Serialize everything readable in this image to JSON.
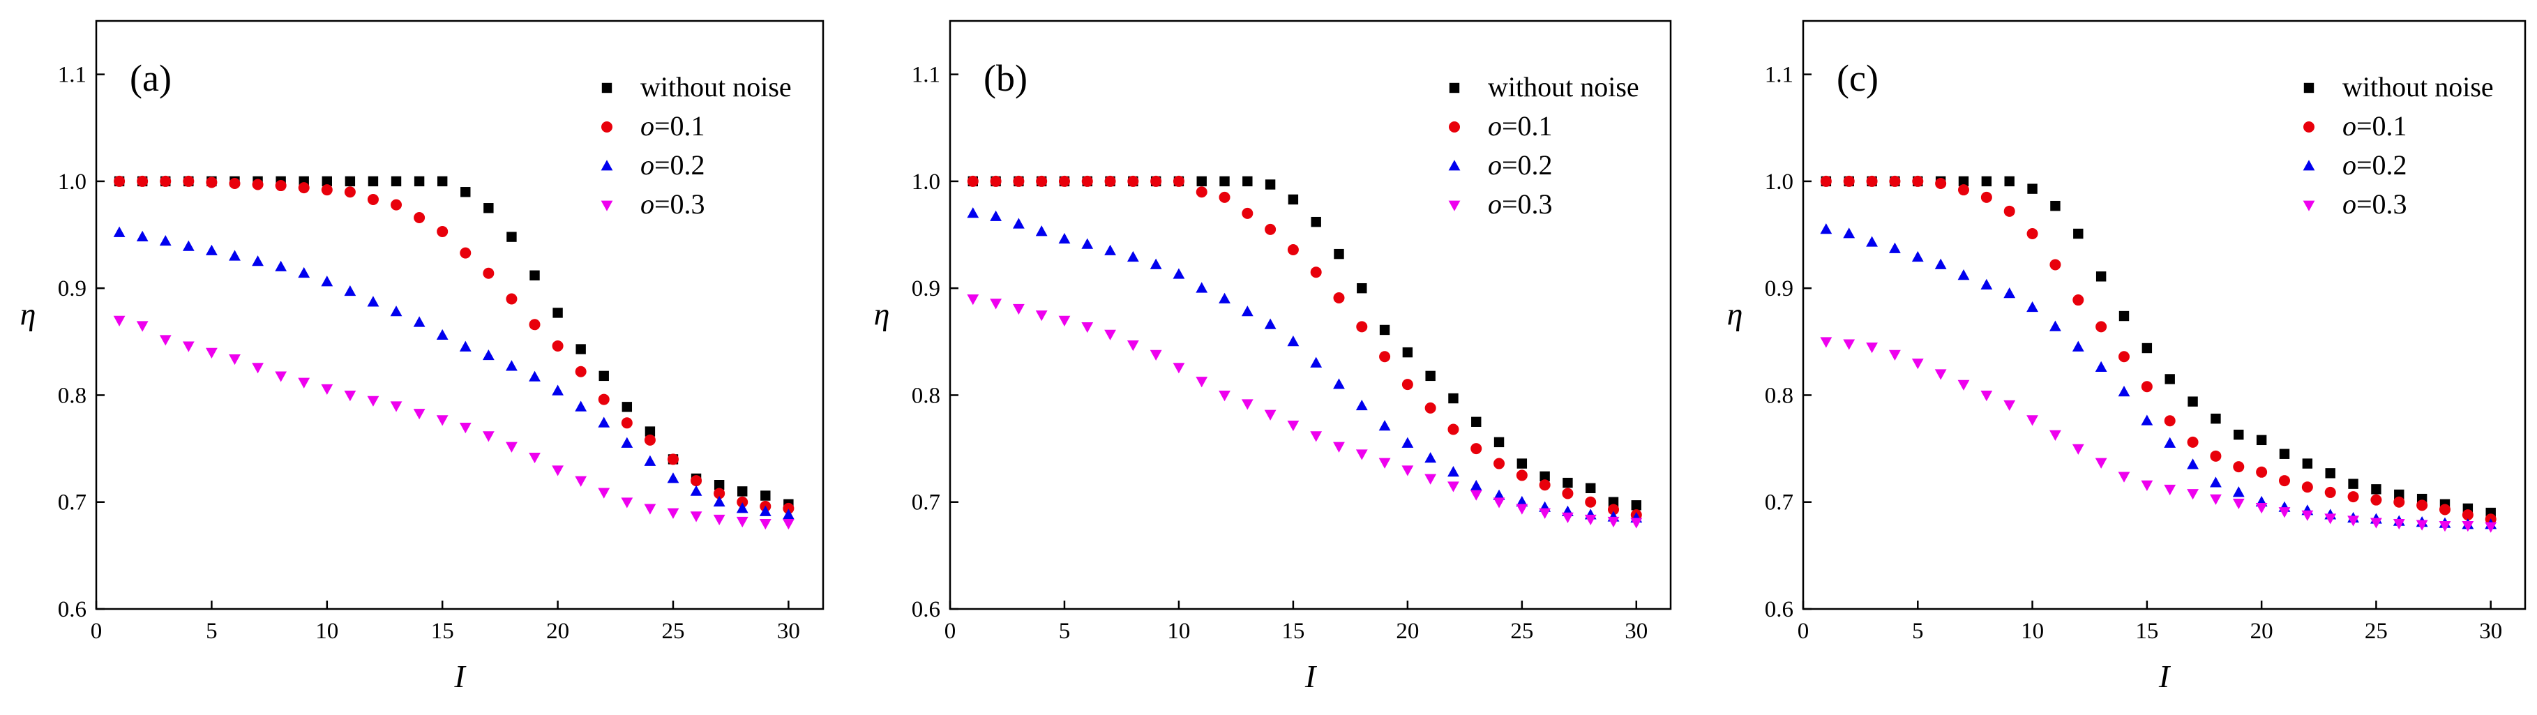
{
  "chart_data": [
    {
      "type": "scatter",
      "panel_label": "(a)",
      "xlabel": "I",
      "ylabel": "η",
      "xlim": [
        0,
        31.5
      ],
      "ylim": [
        0.6,
        1.15
      ],
      "xticks": [
        0,
        5,
        10,
        15,
        20,
        25,
        30
      ],
      "yticks": [
        0.6,
        0.7,
        0.8,
        0.9,
        1.0,
        1.1
      ],
      "legend_position": "top-right",
      "x": [
        1,
        2,
        3,
        4,
        5,
        6,
        7,
        8,
        9,
        10,
        11,
        12,
        13,
        14,
        15,
        16,
        17,
        18,
        19,
        20,
        21,
        22,
        23,
        24,
        25,
        26,
        27,
        28,
        29,
        30
      ],
      "series": [
        {
          "name": "without noise",
          "symbol_label": "",
          "value_label": "without noise",
          "marker": "square",
          "color": "#000000",
          "values": [
            1.0,
            1.0,
            1.0,
            1.0,
            1.0,
            1.0,
            1.0,
            1.0,
            1.0,
            1.0,
            1.0,
            1.0,
            1.0,
            1.0,
            1.0,
            0.99,
            0.975,
            0.948,
            0.912,
            0.877,
            0.843,
            0.818,
            0.789,
            0.766,
            0.74,
            0.722,
            0.716,
            0.71,
            0.706,
            0.698
          ]
        },
        {
          "name": "o=0.1",
          "symbol_label": "o",
          "value_label": "=0.1",
          "marker": "circle",
          "color": "#e8000b",
          "values": [
            1.0,
            1.0,
            1.0,
            1.0,
            0.999,
            0.998,
            0.997,
            0.996,
            0.994,
            0.992,
            0.99,
            0.983,
            0.978,
            0.966,
            0.953,
            0.933,
            0.914,
            0.89,
            0.866,
            0.846,
            0.822,
            0.796,
            0.774,
            0.758,
            0.74,
            0.72,
            0.708,
            0.7,
            0.696,
            0.694
          ]
        },
        {
          "name": "o=0.2",
          "symbol_label": "o",
          "value_label": "=0.2",
          "marker": "triangle-up",
          "color": "#0000ee",
          "values": [
            0.952,
            0.948,
            0.944,
            0.939,
            0.935,
            0.93,
            0.925,
            0.92,
            0.914,
            0.906,
            0.897,
            0.887,
            0.878,
            0.868,
            0.856,
            0.845,
            0.837,
            0.827,
            0.817,
            0.804,
            0.789,
            0.774,
            0.755,
            0.738,
            0.722,
            0.71,
            0.7,
            0.694,
            0.691,
            0.688
          ]
        },
        {
          "name": "o=0.3",
          "symbol_label": "o",
          "value_label": "=0.3",
          "marker": "triangle-down",
          "color": "#ee00ee",
          "values": [
            0.87,
            0.865,
            0.852,
            0.846,
            0.84,
            0.834,
            0.826,
            0.818,
            0.812,
            0.806,
            0.8,
            0.795,
            0.79,
            0.783,
            0.777,
            0.77,
            0.762,
            0.752,
            0.742,
            0.73,
            0.72,
            0.709,
            0.7,
            0.694,
            0.69,
            0.687,
            0.684,
            0.682,
            0.68,
            0.68
          ]
        }
      ]
    },
    {
      "type": "scatter",
      "panel_label": "(b)",
      "xlabel": "I",
      "ylabel": "η",
      "xlim": [
        0,
        31.5
      ],
      "ylim": [
        0.6,
        1.15
      ],
      "xticks": [
        0,
        5,
        10,
        15,
        20,
        25,
        30
      ],
      "yticks": [
        0.6,
        0.7,
        0.8,
        0.9,
        1.0,
        1.1
      ],
      "legend_position": "top-right",
      "x": [
        1,
        2,
        3,
        4,
        5,
        6,
        7,
        8,
        9,
        10,
        11,
        12,
        13,
        14,
        15,
        16,
        17,
        18,
        19,
        20,
        21,
        22,
        23,
        24,
        25,
        26,
        27,
        28,
        29,
        30
      ],
      "series": [
        {
          "name": "without noise",
          "symbol_label": "",
          "value_label": "without noise",
          "marker": "square",
          "color": "#000000",
          "values": [
            1.0,
            1.0,
            1.0,
            1.0,
            1.0,
            1.0,
            1.0,
            1.0,
            1.0,
            1.0,
            1.0,
            1.0,
            1.0,
            0.997,
            0.983,
            0.962,
            0.932,
            0.9,
            0.861,
            0.84,
            0.818,
            0.797,
            0.775,
            0.756,
            0.736,
            0.724,
            0.718,
            0.713,
            0.7,
            0.697
          ]
        },
        {
          "name": "o=0.1",
          "symbol_label": "o",
          "value_label": "=0.1",
          "marker": "circle",
          "color": "#e8000b",
          "values": [
            1.0,
            1.0,
            1.0,
            1.0,
            1.0,
            1.0,
            1.0,
            1.0,
            1.0,
            1.0,
            0.99,
            0.985,
            0.97,
            0.955,
            0.936,
            0.915,
            0.891,
            0.864,
            0.836,
            0.81,
            0.788,
            0.768,
            0.75,
            0.736,
            0.725,
            0.716,
            0.708,
            0.7,
            0.693,
            0.688
          ]
        },
        {
          "name": "o=0.2",
          "symbol_label": "o",
          "value_label": "=0.2",
          "marker": "triangle-up",
          "color": "#0000ee",
          "values": [
            0.97,
            0.967,
            0.96,
            0.953,
            0.946,
            0.941,
            0.935,
            0.929,
            0.922,
            0.913,
            0.9,
            0.89,
            0.878,
            0.866,
            0.85,
            0.83,
            0.81,
            0.79,
            0.771,
            0.755,
            0.741,
            0.728,
            0.715,
            0.706,
            0.7,
            0.695,
            0.691,
            0.688,
            0.686,
            0.685
          ]
        },
        {
          "name": "o=0.3",
          "symbol_label": "o",
          "value_label": "=0.3",
          "marker": "triangle-down",
          "color": "#ee00ee",
          "values": [
            0.89,
            0.886,
            0.881,
            0.875,
            0.87,
            0.864,
            0.857,
            0.847,
            0.838,
            0.826,
            0.813,
            0.8,
            0.792,
            0.782,
            0.772,
            0.762,
            0.752,
            0.745,
            0.737,
            0.73,
            0.722,
            0.715,
            0.707,
            0.7,
            0.694,
            0.69,
            0.686,
            0.684,
            0.682,
            0.681
          ]
        }
      ]
    },
    {
      "type": "scatter",
      "panel_label": "(c)",
      "xlabel": "I",
      "ylabel": "η",
      "xlim": [
        0,
        31.5
      ],
      "ylim": [
        0.6,
        1.15
      ],
      "xticks": [
        0,
        5,
        10,
        15,
        20,
        25,
        30
      ],
      "yticks": [
        0.6,
        0.7,
        0.8,
        0.9,
        1.0,
        1.1
      ],
      "legend_position": "top-right",
      "x": [
        1,
        2,
        3,
        4,
        5,
        6,
        7,
        8,
        9,
        10,
        11,
        12,
        13,
        14,
        15,
        16,
        17,
        18,
        19,
        20,
        21,
        22,
        23,
        24,
        25,
        26,
        27,
        28,
        29,
        30
      ],
      "series": [
        {
          "name": "without noise",
          "symbol_label": "",
          "value_label": "without noise",
          "marker": "square",
          "color": "#000000",
          "values": [
            1.0,
            1.0,
            1.0,
            1.0,
            1.0,
            1.0,
            1.0,
            1.0,
            1.0,
            0.993,
            0.977,
            0.951,
            0.911,
            0.874,
            0.844,
            0.815,
            0.794,
            0.778,
            0.763,
            0.758,
            0.745,
            0.736,
            0.727,
            0.717,
            0.712,
            0.707,
            0.703,
            0.698,
            0.694,
            0.69
          ]
        },
        {
          "name": "o=0.1",
          "symbol_label": "o",
          "value_label": "=0.1",
          "marker": "circle",
          "color": "#e8000b",
          "values": [
            1.0,
            1.0,
            1.0,
            1.0,
            1.0,
            0.998,
            0.992,
            0.985,
            0.972,
            0.951,
            0.922,
            0.889,
            0.864,
            0.836,
            0.808,
            0.776,
            0.756,
            0.743,
            0.733,
            0.728,
            0.72,
            0.714,
            0.709,
            0.705,
            0.702,
            0.7,
            0.697,
            0.693,
            0.688,
            0.684
          ]
        },
        {
          "name": "o=0.2",
          "symbol_label": "o",
          "value_label": "=0.2",
          "marker": "triangle-up",
          "color": "#0000ee",
          "values": [
            0.955,
            0.951,
            0.943,
            0.937,
            0.929,
            0.922,
            0.912,
            0.903,
            0.895,
            0.882,
            0.864,
            0.845,
            0.826,
            0.803,
            0.776,
            0.755,
            0.735,
            0.718,
            0.709,
            0.7,
            0.695,
            0.692,
            0.688,
            0.685,
            0.684,
            0.682,
            0.681,
            0.68,
            0.679,
            0.679
          ]
        },
        {
          "name": "o=0.3",
          "symbol_label": "o",
          "value_label": "=0.3",
          "marker": "triangle-down",
          "color": "#ee00ee",
          "values": [
            0.85,
            0.848,
            0.845,
            0.838,
            0.83,
            0.82,
            0.81,
            0.8,
            0.791,
            0.777,
            0.763,
            0.75,
            0.737,
            0.724,
            0.716,
            0.712,
            0.708,
            0.703,
            0.699,
            0.695,
            0.691,
            0.688,
            0.685,
            0.683,
            0.681,
            0.68,
            0.679,
            0.678,
            0.678,
            0.677
          ]
        }
      ]
    }
  ]
}
